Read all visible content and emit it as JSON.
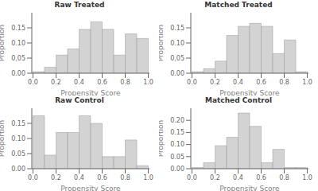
{
  "chart_data": [
    {
      "type": "histogram",
      "title": "Raw Treated",
      "xlabel": "Propensity Score",
      "ylabel": "Proportion",
      "bins": [
        0.0,
        0.1,
        0.2,
        0.3,
        0.4,
        0.5,
        0.6,
        0.7,
        0.8,
        0.9,
        1.0
      ],
      "values": [
        0.005,
        0.02,
        0.06,
        0.08,
        0.145,
        0.17,
        0.145,
        0.06,
        0.13,
        0.115
      ],
      "color": "#d3d3d3",
      "xlim": [
        -0.01,
        1.01
      ],
      "xticks": [
        {
          "value": 0.0,
          "label": "0.0"
        },
        0.2,
        0.4,
        0.6,
        0.8,
        {
          "value": 1.0,
          "label": "1.0"
        }
      ],
      "ylim": [
        0,
        0.2
      ],
      "yticks": [
        {
          "value": 0.0,
          "label": "0.00"
        },
        0.05,
        {
          "value": 0.1,
          "label": "0.10"
        },
        0.15
      ],
      "grid": false
    },
    {
      "type": "histogram",
      "title": "Matched Treated",
      "xlabel": "Propensity Score",
      "ylabel": "Proportion",
      "bins": [
        0.0,
        0.1,
        0.2,
        0.3,
        0.4,
        0.5,
        0.6,
        0.7,
        0.8,
        0.9,
        1.0
      ],
      "values": [
        0.005,
        0.015,
        0.04,
        0.125,
        0.155,
        0.165,
        0.155,
        0.065,
        0.11,
        0.005
      ],
      "color": "#d3d3d3",
      "xlim": [
        -0.01,
        1.01
      ],
      "xticks": [
        {
          "value": 0.0,
          "label": "0.0"
        },
        0.2,
        0.4,
        0.6,
        0.8,
        {
          "value": 1.0,
          "label": "1.0"
        }
      ],
      "ylim": [
        0,
        0.2
      ],
      "yticks": [
        {
          "value": 0.0,
          "label": "0.00"
        },
        0.05,
        {
          "value": 0.1,
          "label": "0.10"
        },
        0.15
      ],
      "grid": false
    },
    {
      "type": "histogram",
      "title": "Raw Control",
      "xlabel": "Propensity Score",
      "ylabel": "Proportion",
      "bins": [
        0.0,
        0.1,
        0.2,
        0.3,
        0.4,
        0.5,
        0.6,
        0.7,
        0.8,
        0.9,
        1.0
      ],
      "values": [
        0.175,
        0.045,
        0.12,
        0.12,
        0.175,
        0.15,
        0.04,
        0.04,
        0.095,
        0.01
      ],
      "color": "#d3d3d3",
      "xlim": [
        -0.01,
        1.01
      ],
      "xticks": [
        {
          "value": 0.0,
          "label": "0.0"
        },
        0.2,
        0.4,
        0.6,
        0.8,
        {
          "value": 1.0,
          "label": "1.0"
        }
      ],
      "ylim": [
        0,
        0.2
      ],
      "yticks": [
        {
          "value": 0.0,
          "label": "0.00"
        },
        0.05,
        {
          "value": 0.1,
          "label": "0.10"
        },
        0.15
      ],
      "grid": false
    },
    {
      "type": "histogram",
      "title": "Matched Control",
      "xlabel": "Propensity Score",
      "ylabel": "Proportion",
      "bins": [
        0.0,
        0.1,
        0.2,
        0.3,
        0.4,
        0.5,
        0.6,
        0.7,
        0.8,
        0.9,
        1.0
      ],
      "values": [
        0.005,
        0.025,
        0.095,
        0.13,
        0.23,
        0.175,
        0.025,
        0.08,
        0.005,
        0.005
      ],
      "color": "#d3d3d3",
      "xlim": [
        -0.01,
        1.01
      ],
      "xticks": [
        {
          "value": 0.0,
          "label": "0.0"
        },
        0.2,
        0.4,
        0.6,
        0.8,
        {
          "value": 1.0,
          "label": "1.0"
        }
      ],
      "ylim": [
        0,
        0.25
      ],
      "yticks": [
        {
          "value": 0.0,
          "label": "0.00"
        },
        0.05,
        {
          "value": 0.1,
          "label": "0.10"
        },
        0.15,
        {
          "value": 0.2,
          "label": "0.20"
        }
      ],
      "grid": false
    }
  ]
}
